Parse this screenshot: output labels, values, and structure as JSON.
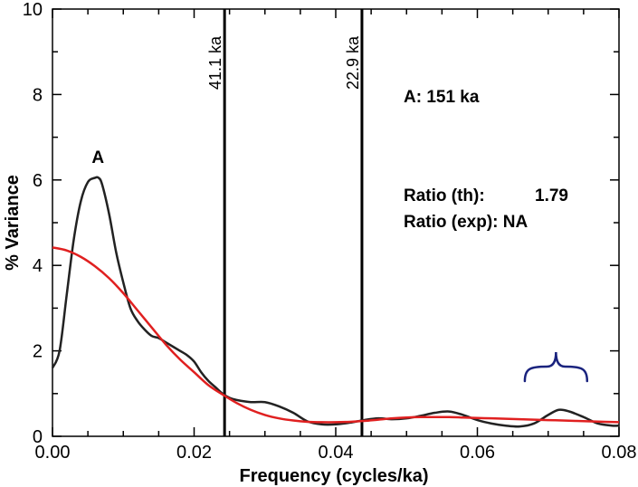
{
  "chart_data": {
    "type": "line",
    "xlabel": "Frequency (cycles/ka)",
    "ylabel": "% Variance",
    "xlim": [
      0,
      0.08
    ],
    "ylim": [
      0,
      10
    ],
    "x_ticks": [
      0.0,
      0.02,
      0.04,
      0.06,
      0.08
    ],
    "x_tick_labels": [
      "0.00",
      "0.02",
      "0.04",
      "0.06",
      "0.08"
    ],
    "y_ticks": [
      0,
      2,
      4,
      6,
      8,
      10
    ],
    "y_tick_labels": [
      "0",
      "2",
      "4",
      "6",
      "8",
      "10"
    ],
    "grid": false,
    "series": [
      {
        "color": "#222222",
        "x": [
          0.0,
          0.001,
          0.002,
          0.003,
          0.004,
          0.005,
          0.006,
          0.0065,
          0.007,
          0.008,
          0.009,
          0.01,
          0.011,
          0.012,
          0.013,
          0.014,
          0.015,
          0.016,
          0.017,
          0.018,
          0.019,
          0.02,
          0.021,
          0.022,
          0.023,
          0.024,
          0.025,
          0.026,
          0.028,
          0.03,
          0.032,
          0.034,
          0.036,
          0.038,
          0.04,
          0.042,
          0.044,
          0.046,
          0.048,
          0.05,
          0.052,
          0.054,
          0.056,
          0.058,
          0.06,
          0.062,
          0.064,
          0.066,
          0.068,
          0.07,
          0.0715,
          0.073,
          0.075,
          0.077,
          0.079,
          0.08
        ],
        "y": [
          1.6,
          2.0,
          3.3,
          4.6,
          5.5,
          5.95,
          6.05,
          6.05,
          5.9,
          5.2,
          4.3,
          3.6,
          3.0,
          2.7,
          2.5,
          2.35,
          2.3,
          2.2,
          2.1,
          2.0,
          1.9,
          1.75,
          1.5,
          1.3,
          1.15,
          1.0,
          0.9,
          0.85,
          0.8,
          0.8,
          0.7,
          0.55,
          0.35,
          0.28,
          0.28,
          0.32,
          0.38,
          0.42,
          0.4,
          0.42,
          0.48,
          0.55,
          0.58,
          0.5,
          0.38,
          0.3,
          0.25,
          0.23,
          0.3,
          0.5,
          0.62,
          0.58,
          0.45,
          0.3,
          0.25,
          0.25
        ]
      },
      {
        "color": "#e02020",
        "x": [
          0.0,
          0.002,
          0.004,
          0.006,
          0.008,
          0.01,
          0.012,
          0.014,
          0.016,
          0.018,
          0.02,
          0.022,
          0.024,
          0.026,
          0.028,
          0.03,
          0.032,
          0.034,
          0.036,
          0.038,
          0.04,
          0.042,
          0.044,
          0.046,
          0.048,
          0.05,
          0.052,
          0.054,
          0.056,
          0.058,
          0.06,
          0.062,
          0.064,
          0.066,
          0.068,
          0.07,
          0.072,
          0.074,
          0.076,
          0.078,
          0.08
        ],
        "y": [
          4.42,
          4.35,
          4.2,
          3.98,
          3.7,
          3.35,
          2.95,
          2.55,
          2.15,
          1.8,
          1.5,
          1.2,
          0.98,
          0.78,
          0.62,
          0.5,
          0.42,
          0.37,
          0.34,
          0.33,
          0.33,
          0.34,
          0.36,
          0.39,
          0.42,
          0.44,
          0.45,
          0.45,
          0.45,
          0.44,
          0.43,
          0.42,
          0.41,
          0.4,
          0.39,
          0.38,
          0.37,
          0.36,
          0.35,
          0.34,
          0.33
        ]
      }
    ],
    "vertical_lines": [
      {
        "x": 0.0243,
        "label": "41.1 ka"
      },
      {
        "x": 0.0437,
        "label": "22.9 ka"
      }
    ],
    "annotations": {
      "peak_label": {
        "text": "A",
        "x": 0.0068,
        "y": 6.4
      },
      "info_line1": "A: 151 ka",
      "ratio_th_label": "Ratio (th):",
      "ratio_th_value": "1.79",
      "ratio_exp": "Ratio (exp): NA"
    },
    "brace": {
      "x_start": 0.0667,
      "x_end": 0.0755,
      "y": 1.8,
      "color": "#1a237e"
    }
  }
}
